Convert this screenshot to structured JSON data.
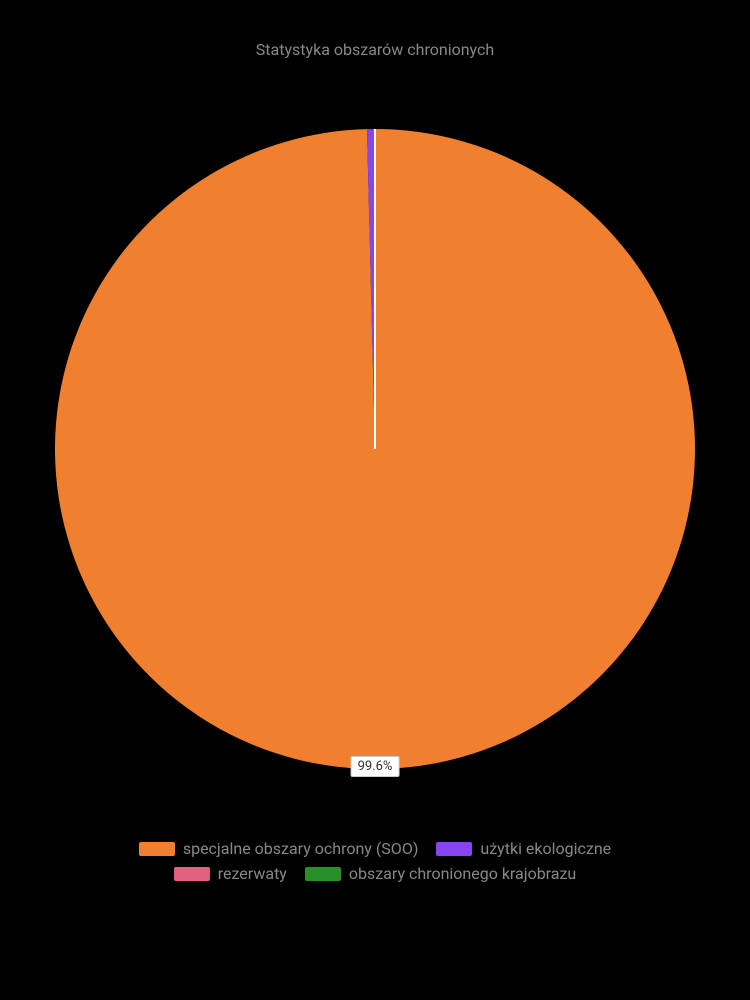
{
  "chart": {
    "type": "pie",
    "title": "Statystyka obszarów chronionych",
    "title_fontsize": 16,
    "title_color": "#888888",
    "background_color": "#000000",
    "radius": 320,
    "slices": [
      {
        "label": "specjalne obszary ochrony (SOO)",
        "value": 99.6,
        "color": "#f08030",
        "show_label": true,
        "label_text": "99.6%"
      },
      {
        "label": "użytki ekologiczne",
        "value": 0.4,
        "color": "#8844ee",
        "show_label": false
      },
      {
        "label": "rezerwaty",
        "value": 0.0,
        "color": "#e06080",
        "show_label": false
      },
      {
        "label": "obszary chronionego krajobrazu",
        "value": 0.0,
        "color": "#289028",
        "show_label": false
      }
    ],
    "legend": {
      "label_color": "#888888",
      "label_fontsize": 16,
      "rows": [
        [
          0,
          1
        ],
        [
          2,
          3
        ]
      ]
    },
    "data_label": {
      "background": "#ffffff",
      "border_color": "#cccccc",
      "text_color": "#333333",
      "fontsize": 13
    }
  }
}
